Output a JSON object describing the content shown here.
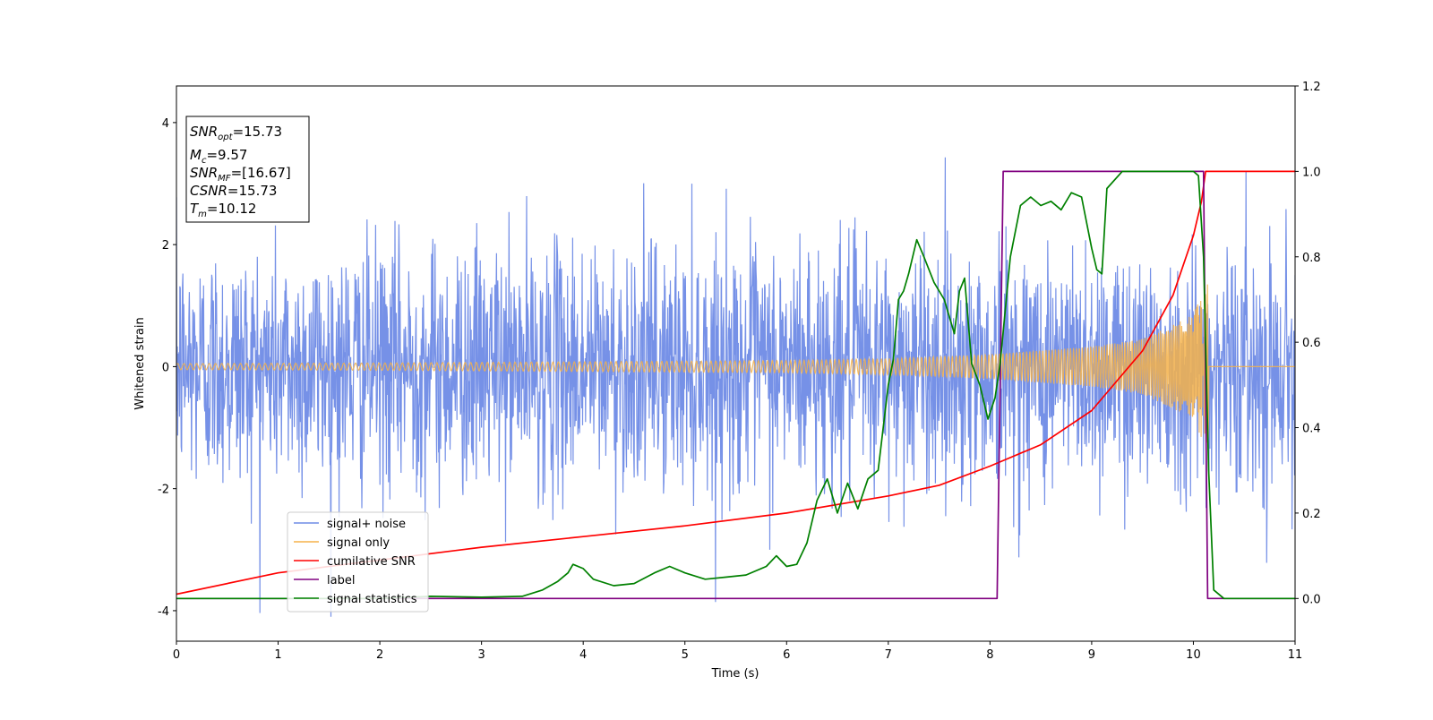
{
  "chart_data": {
    "type": "line",
    "title": "",
    "xlabel": "Time (s)",
    "ylabel_left": "Whitened strain",
    "ylabel_right": "",
    "xlim": [
      0,
      11
    ],
    "ylim_left": [
      -4.5,
      4.6
    ],
    "ylim_right": [
      -0.1,
      1.2
    ],
    "x_ticks": [
      "0",
      "1",
      "2",
      "3",
      "4",
      "5",
      "6",
      "7",
      "8",
      "9",
      "10",
      "11"
    ],
    "y_left_ticks": [
      "-4",
      "-2",
      "0",
      "2",
      "4"
    ],
    "y_right_ticks": [
      "0.0",
      "0.2",
      "0.4",
      "0.6",
      "0.8",
      "1.0",
      "1.2"
    ],
    "grid": false,
    "legend_position": "lower-left",
    "info_box": {
      "snr_opt": "=15.73",
      "mc": "=9.57",
      "snr_mf": "=[16.67]",
      "csnr": "=15.73",
      "tm": "=10.12"
    },
    "series": [
      {
        "name": "signal+ noise",
        "color": "#6f8be6",
        "axis": "left",
        "description_values": {
          "noise_std": 1.0,
          "max": 4.15,
          "min": -4.1
        }
      },
      {
        "name": "signal only",
        "color": "#f5b24a",
        "axis": "left",
        "envelope": {
          "x": [
            0,
            2,
            4,
            6,
            7,
            8,
            9,
            9.5,
            10,
            10.12
          ],
          "amp": [
            0.05,
            0.06,
            0.08,
            0.1,
            0.13,
            0.2,
            0.33,
            0.45,
            0.85,
            1.35
          ]
        },
        "end": 10.15
      },
      {
        "name": "cumilative SNR",
        "color": "#ff0000",
        "axis": "right",
        "x": [
          0,
          1,
          2,
          3,
          4,
          5,
          6,
          7,
          7.5,
          8,
          8.5,
          9,
          9.5,
          9.8,
          10,
          10.08,
          10.12,
          11
        ],
        "y": [
          0.01,
          0.06,
          0.09,
          0.12,
          0.145,
          0.17,
          0.2,
          0.24,
          0.265,
          0.31,
          0.36,
          0.44,
          0.58,
          0.71,
          0.85,
          0.93,
          1.0,
          1.0
        ]
      },
      {
        "name": "label",
        "color": "#800080",
        "axis": "right",
        "x": [
          0,
          8.07,
          8.13,
          10.1,
          10.14,
          11
        ],
        "y": [
          0,
          0,
          1,
          1,
          0,
          0
        ]
      },
      {
        "name": "signal statistics",
        "color": "#008000",
        "axis": "right",
        "x": [
          0,
          1,
          2,
          2.5,
          3,
          3.4,
          3.6,
          3.75,
          3.85,
          3.9,
          4.0,
          4.1,
          4.3,
          4.5,
          4.7,
          4.85,
          5.0,
          5.2,
          5.4,
          5.6,
          5.8,
          5.9,
          6.0,
          6.1,
          6.2,
          6.3,
          6.4,
          6.5,
          6.6,
          6.7,
          6.8,
          6.9,
          7.0,
          7.05,
          7.1,
          7.15,
          7.2,
          7.28,
          7.35,
          7.45,
          7.55,
          7.65,
          7.7,
          7.75,
          7.82,
          7.9,
          7.98,
          8.05,
          8.1,
          8.2,
          8.3,
          8.4,
          8.5,
          8.6,
          8.7,
          8.8,
          8.9,
          9.0,
          9.05,
          9.1,
          9.15,
          9.3,
          9.5,
          9.7,
          9.9,
          10.0,
          10.05,
          10.1,
          10.15,
          10.2,
          10.3,
          11
        ],
        "y": [
          0.0,
          0.0,
          0.0,
          0.005,
          0.003,
          0.005,
          0.02,
          0.04,
          0.06,
          0.08,
          0.07,
          0.045,
          0.03,
          0.035,
          0.06,
          0.075,
          0.06,
          0.045,
          0.05,
          0.055,
          0.075,
          0.1,
          0.075,
          0.08,
          0.13,
          0.23,
          0.28,
          0.2,
          0.27,
          0.21,
          0.28,
          0.3,
          0.5,
          0.56,
          0.7,
          0.72,
          0.76,
          0.84,
          0.8,
          0.74,
          0.7,
          0.62,
          0.72,
          0.75,
          0.55,
          0.5,
          0.42,
          0.47,
          0.55,
          0.8,
          0.92,
          0.94,
          0.92,
          0.93,
          0.91,
          0.95,
          0.94,
          0.82,
          0.77,
          0.76,
          0.96,
          1.0,
          1.0,
          1.0,
          1.0,
          1.0,
          0.99,
          0.8,
          0.3,
          0.02,
          0.0,
          0.0
        ]
      }
    ]
  }
}
